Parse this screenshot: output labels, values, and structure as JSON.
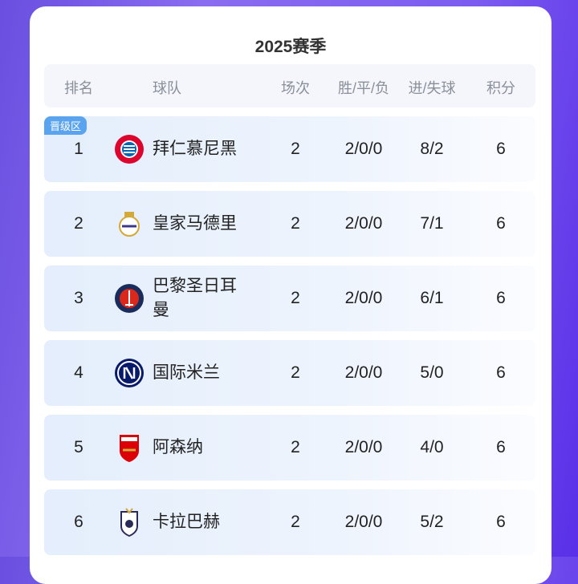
{
  "title": "2025赛季",
  "headers": [
    "排名",
    "球队",
    "场次",
    "胜/平/负",
    "进/失球",
    "积分"
  ],
  "badge": "晋级区",
  "rows": [
    {
      "rank": "1",
      "team": "拜仁慕尼黑",
      "played": "2",
      "wdl": "2/0/0",
      "goals": "8/2",
      "points": "6",
      "logo": "bayern-logo",
      "badge": true
    },
    {
      "rank": "2",
      "team": "皇家马德里",
      "played": "2",
      "wdl": "2/0/0",
      "goals": "7/1",
      "points": "6",
      "logo": "real-madrid-logo"
    },
    {
      "rank": "3",
      "team": "巴黎圣日耳曼",
      "played": "2",
      "wdl": "2/0/0",
      "goals": "6/1",
      "points": "6",
      "logo": "psg-logo"
    },
    {
      "rank": "4",
      "team": "国际米兰",
      "played": "2",
      "wdl": "2/0/0",
      "goals": "5/0",
      "points": "6",
      "logo": "inter-logo"
    },
    {
      "rank": "5",
      "team": "阿森纳",
      "played": "2",
      "wdl": "2/0/0",
      "goals": "4/0",
      "points": "6",
      "logo": "arsenal-logo"
    },
    {
      "rank": "6",
      "team": "卡拉巴赫",
      "played": "2",
      "wdl": "2/0/0",
      "goals": "5/2",
      "points": "6",
      "logo": "qarabag-logo"
    }
  ]
}
